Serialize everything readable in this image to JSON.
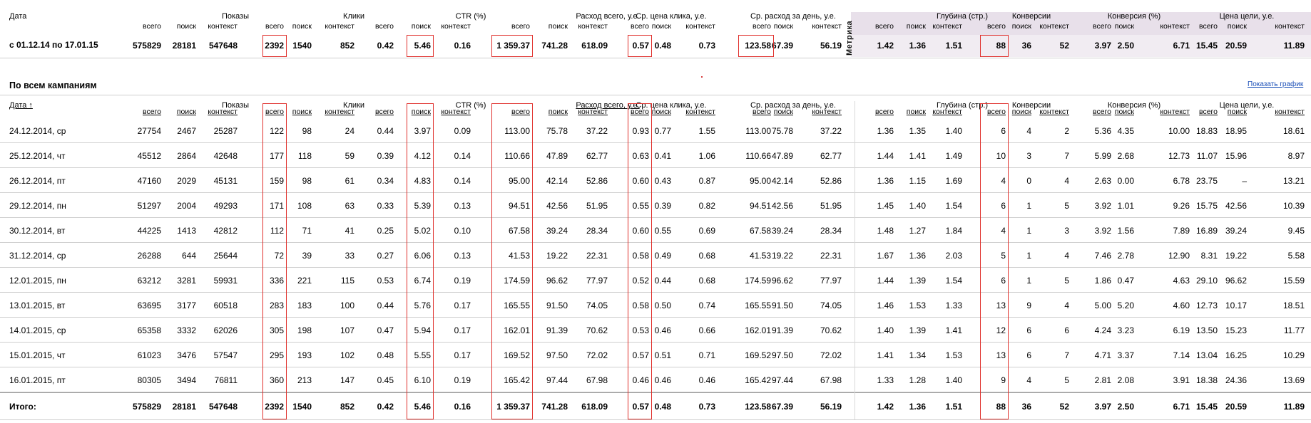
{
  "summary": {
    "date_header": "Дата",
    "date_range": "с 01.12.14 по 17.01.15",
    "metrika_label": "Метрика",
    "values": [
      "575829",
      "28181",
      "547648",
      "2392",
      "1540",
      "852",
      "0.42",
      "5.46",
      "0.16",
      "1 359.37",
      "741.28",
      "618.09",
      "0.57",
      "0.48",
      "0.73",
      "123.58",
      "67.39",
      "56.19",
      "1.42",
      "1.36",
      "1.51",
      "88",
      "36",
      "52",
      "3.97",
      "2.50",
      "6.71",
      "15.45",
      "20.59",
      "11.89"
    ]
  },
  "groups": [
    "Показы",
    "Клики",
    "CTR (%)",
    "Расход всего, у.е.",
    "Ср. цена клика, у.е.",
    "Ср. расход за день, у.е.",
    "Глубина (стр.)",
    "Конверсии",
    "Конверсия (%)",
    "Цена цели, у.е."
  ],
  "subs": [
    "всего",
    "поиск",
    "контекст"
  ],
  "campaigns": {
    "title": "По всем кампаниям",
    "graph_link": "Показать график",
    "date_col": "Дата ↑",
    "rows": [
      {
        "date": "24.12.2014, ср",
        "v": [
          "27754",
          "2467",
          "25287",
          "122",
          "98",
          "24",
          "0.44",
          "3.97",
          "0.09",
          "113.00",
          "75.78",
          "37.22",
          "0.93",
          "0.77",
          "1.55",
          "113.00",
          "75.78",
          "37.22",
          "1.36",
          "1.35",
          "1.40",
          "6",
          "4",
          "2",
          "5.36",
          "4.35",
          "10.00",
          "18.83",
          "18.95",
          "18.61"
        ]
      },
      {
        "date": "25.12.2014, чт",
        "v": [
          "45512",
          "2864",
          "42648",
          "177",
          "118",
          "59",
          "0.39",
          "4.12",
          "0.14",
          "110.66",
          "47.89",
          "62.77",
          "0.63",
          "0.41",
          "1.06",
          "110.66",
          "47.89",
          "62.77",
          "1.44",
          "1.41",
          "1.49",
          "10",
          "3",
          "7",
          "5.99",
          "2.68",
          "12.73",
          "11.07",
          "15.96",
          "8.97"
        ]
      },
      {
        "date": "26.12.2014, пт",
        "v": [
          "47160",
          "2029",
          "45131",
          "159",
          "98",
          "61",
          "0.34",
          "4.83",
          "0.14",
          "95.00",
          "42.14",
          "52.86",
          "0.60",
          "0.43",
          "0.87",
          "95.00",
          "42.14",
          "52.86",
          "1.36",
          "1.15",
          "1.69",
          "4",
          "0",
          "4",
          "2.63",
          "0.00",
          "6.78",
          "23.75",
          "–",
          "13.21"
        ]
      },
      {
        "date": "29.12.2014, пн",
        "v": [
          "51297",
          "2004",
          "49293",
          "171",
          "108",
          "63",
          "0.33",
          "5.39",
          "0.13",
          "94.51",
          "42.56",
          "51.95",
          "0.55",
          "0.39",
          "0.82",
          "94.51",
          "42.56",
          "51.95",
          "1.45",
          "1.40",
          "1.54",
          "6",
          "1",
          "5",
          "3.92",
          "1.01",
          "9.26",
          "15.75",
          "42.56",
          "10.39"
        ]
      },
      {
        "date": "30.12.2014, вт",
        "v": [
          "44225",
          "1413",
          "42812",
          "112",
          "71",
          "41",
          "0.25",
          "5.02",
          "0.10",
          "67.58",
          "39.24",
          "28.34",
          "0.60",
          "0.55",
          "0.69",
          "67.58",
          "39.24",
          "28.34",
          "1.48",
          "1.27",
          "1.84",
          "4",
          "1",
          "3",
          "3.92",
          "1.56",
          "7.89",
          "16.89",
          "39.24",
          "9.45"
        ]
      },
      {
        "date": "31.12.2014, ср",
        "v": [
          "26288",
          "644",
          "25644",
          "72",
          "39",
          "33",
          "0.27",
          "6.06",
          "0.13",
          "41.53",
          "19.22",
          "22.31",
          "0.58",
          "0.49",
          "0.68",
          "41.53",
          "19.22",
          "22.31",
          "1.67",
          "1.36",
          "2.03",
          "5",
          "1",
          "4",
          "7.46",
          "2.78",
          "12.90",
          "8.31",
          "19.22",
          "5.58"
        ]
      },
      {
        "date": "12.01.2015, пн",
        "v": [
          "63212",
          "3281",
          "59931",
          "336",
          "221",
          "115",
          "0.53",
          "6.74",
          "0.19",
          "174.59",
          "96.62",
          "77.97",
          "0.52",
          "0.44",
          "0.68",
          "174.59",
          "96.62",
          "77.97",
          "1.44",
          "1.39",
          "1.54",
          "6",
          "1",
          "5",
          "1.86",
          "0.47",
          "4.63",
          "29.10",
          "96.62",
          "15.59"
        ]
      },
      {
        "date": "13.01.2015, вт",
        "v": [
          "63695",
          "3177",
          "60518",
          "283",
          "183",
          "100",
          "0.44",
          "5.76",
          "0.17",
          "165.55",
          "91.50",
          "74.05",
          "0.58",
          "0.50",
          "0.74",
          "165.55",
          "91.50",
          "74.05",
          "1.46",
          "1.53",
          "1.33",
          "13",
          "9",
          "4",
          "5.00",
          "5.20",
          "4.60",
          "12.73",
          "10.17",
          "18.51"
        ]
      },
      {
        "date": "14.01.2015, ср",
        "v": [
          "65358",
          "3332",
          "62026",
          "305",
          "198",
          "107",
          "0.47",
          "5.94",
          "0.17",
          "162.01",
          "91.39",
          "70.62",
          "0.53",
          "0.46",
          "0.66",
          "162.01",
          "91.39",
          "70.62",
          "1.40",
          "1.39",
          "1.41",
          "12",
          "6",
          "6",
          "4.24",
          "3.23",
          "6.19",
          "13.50",
          "15.23",
          "11.77"
        ]
      },
      {
        "date": "15.01.2015, чт",
        "v": [
          "61023",
          "3476",
          "57547",
          "295",
          "193",
          "102",
          "0.48",
          "5.55",
          "0.17",
          "169.52",
          "97.50",
          "72.02",
          "0.57",
          "0.51",
          "0.71",
          "169.52",
          "97.50",
          "72.02",
          "1.41",
          "1.34",
          "1.53",
          "13",
          "6",
          "7",
          "4.71",
          "3.37",
          "7.14",
          "13.04",
          "16.25",
          "10.29"
        ]
      },
      {
        "date": "16.01.2015, пт",
        "v": [
          "80305",
          "3494",
          "76811",
          "360",
          "213",
          "147",
          "0.45",
          "6.10",
          "0.19",
          "165.42",
          "97.44",
          "67.98",
          "0.46",
          "0.46",
          "0.46",
          "165.42",
          "97.44",
          "67.98",
          "1.33",
          "1.28",
          "1.40",
          "9",
          "4",
          "5",
          "2.81",
          "2.08",
          "3.91",
          "18.38",
          "24.36",
          "13.69"
        ]
      }
    ],
    "total": {
      "label": "Итого:",
      "v": [
        "575829",
        "28181",
        "547648",
        "2392",
        "1540",
        "852",
        "0.42",
        "5.46",
        "0.16",
        "1 359.37",
        "741.28",
        "618.09",
        "0.57",
        "0.48",
        "0.73",
        "123.58",
        "67.39",
        "56.19",
        "1.42",
        "1.36",
        "1.51",
        "88",
        "36",
        "52",
        "3.97",
        "2.50",
        "6.71",
        "15.45",
        "20.59",
        "11.89"
      ]
    }
  },
  "colors": {
    "highlight": "#e0302c",
    "metrika_bg": "#e8e0ea",
    "link": "#1a4fb8"
  }
}
